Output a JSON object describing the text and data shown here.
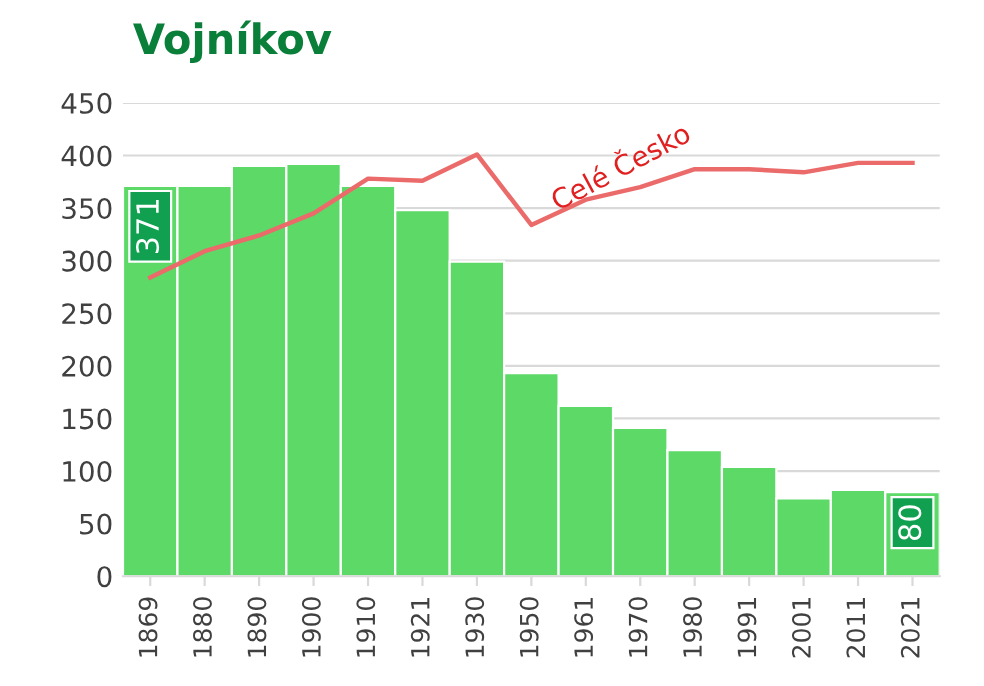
{
  "chart_data": {
    "type": "bar",
    "title": "Vojníkov",
    "categories": [
      "1869",
      "1880",
      "1890",
      "1900",
      "1910",
      "1921",
      "1930",
      "1950",
      "1961",
      "1970",
      "1980",
      "1991",
      "2001",
      "2011",
      "2021"
    ],
    "series": [
      {
        "color": "#5cd966",
        "values": [
          371,
          371,
          390,
          392,
          371,
          348,
          299,
          193,
          162,
          141,
          120,
          104,
          74,
          82,
          80
        ],
        "value_labels": [
          "371",
          null,
          null,
          null,
          null,
          null,
          null,
          null,
          null,
          null,
          null,
          null,
          null,
          null,
          "80"
        ]
      },
      {
        "type": "line",
        "name": "Celé Česko",
        "color": "#eb6b6b",
        "values": [
          284,
          309,
          324,
          345,
          378,
          376,
          401,
          334,
          358,
          370,
          387,
          387,
          384,
          393,
          393
        ]
      }
    ],
    "ylim": [
      0,
      450
    ],
    "yticks": [
      0,
      50,
      100,
      150,
      200,
      250,
      300,
      350,
      400,
      450
    ],
    "grid": "y",
    "legend": false
  }
}
